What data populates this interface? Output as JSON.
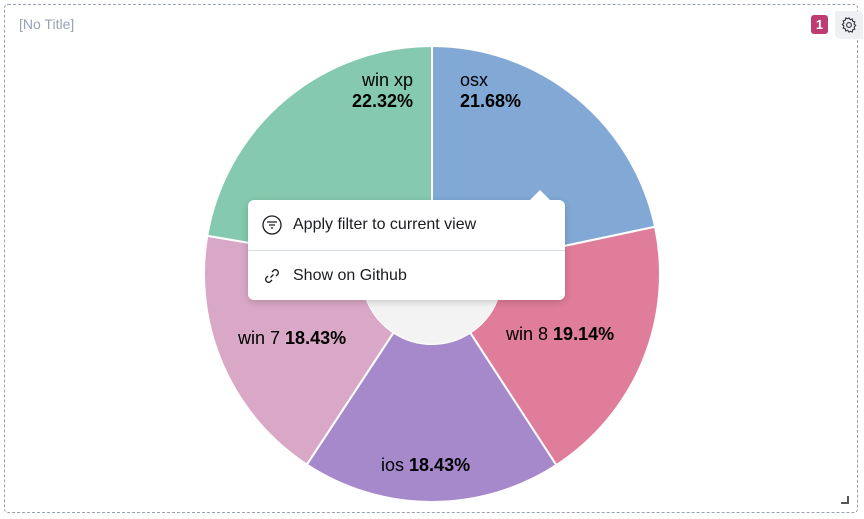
{
  "panel": {
    "title": "[No Title]",
    "badge_count": "1",
    "badge_color": "#bd3d72"
  },
  "chart_data": {
    "type": "pie",
    "donut": true,
    "slices": [
      {
        "label": "osx",
        "value": 21.68,
        "display": "21.68%",
        "color": "#82a9d6"
      },
      {
        "label": "win 8",
        "value": 19.14,
        "display": "19.14%",
        "color": "#e07d9b"
      },
      {
        "label": "ios",
        "value": 18.43,
        "display": "18.43%",
        "color": "#a589cb"
      },
      {
        "label": "win 7",
        "value": 18.43,
        "display": "18.43%",
        "color": "#d9a8c6"
      },
      {
        "label": "win xp",
        "value": 22.32,
        "display": "22.32%",
        "color": "#85cab0"
      }
    ]
  },
  "context_menu": {
    "items": [
      {
        "label": "Apply filter to current view",
        "icon": "filter-icon"
      },
      {
        "label": "Show on Github",
        "icon": "link-icon"
      }
    ]
  }
}
